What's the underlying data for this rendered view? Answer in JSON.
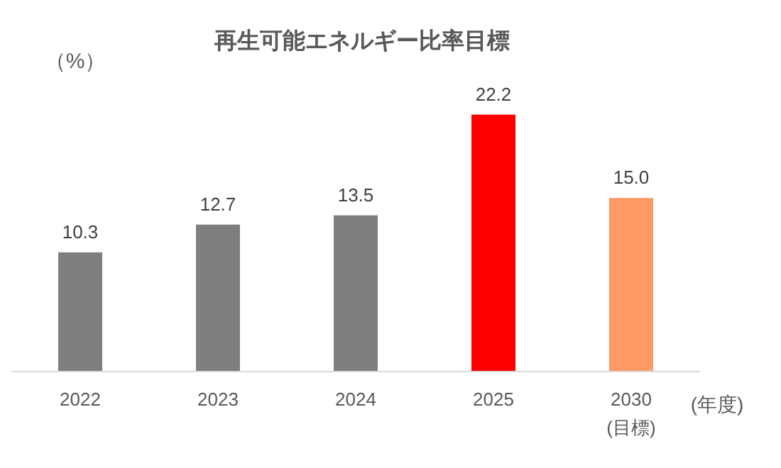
{
  "chart_data": {
    "type": "bar",
    "title": "再生可能エネルギー比率目標",
    "ylabel": "（%）",
    "xlabel": "(年度)",
    "categories": [
      "2022",
      "2023",
      "2024",
      "2025",
      "2030 (目標)"
    ],
    "values": [
      10.3,
      12.7,
      13.5,
      22.2,
      15.0
    ],
    "colors": [
      "#7f7f7f",
      "#7f7f7f",
      "#7f7f7f",
      "#ff0000",
      "#ff9966"
    ],
    "value_labels": [
      "10.3",
      "12.7",
      "13.5",
      "22.2",
      "15.0"
    ],
    "grid": false
  }
}
